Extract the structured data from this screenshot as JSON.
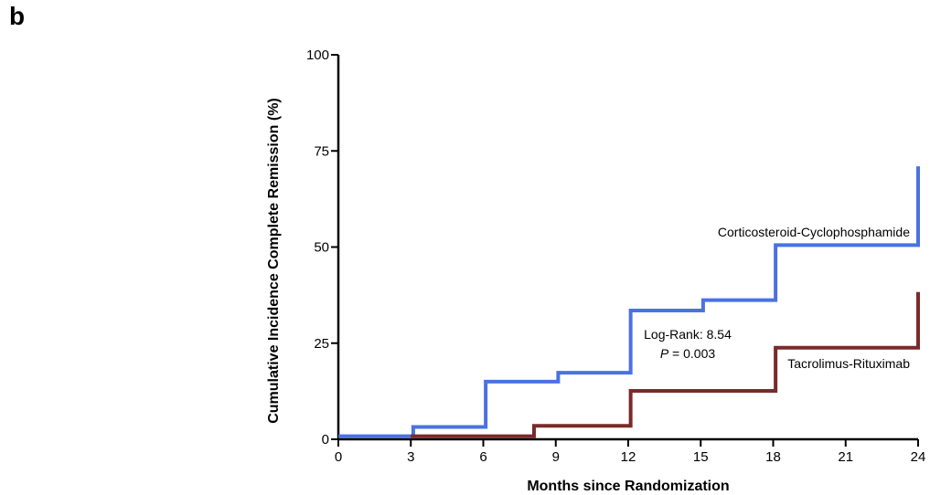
{
  "panel_label": "b",
  "chart_data": {
    "type": "line",
    "step": true,
    "xlabel": "Months since Randomization",
    "ylabel": "Cumulative Incidence Complete Remission (%)",
    "xlim": [
      0,
      24
    ],
    "ylim": [
      0,
      100
    ],
    "xticks": [
      0,
      3,
      6,
      9,
      12,
      15,
      18,
      21,
      24
    ],
    "yticks": [
      0,
      25,
      50,
      75,
      100
    ],
    "grid": false,
    "series": [
      {
        "name": "Corticosteroid-Cyclophosphamide",
        "color": "#4a72e0",
        "x": [
          0,
          3.1,
          6.1,
          9.1,
          12.1,
          15.1,
          18.1,
          24.0
        ],
        "y": [
          0.8,
          3.2,
          15.0,
          17.3,
          33.5,
          36.2,
          50.5,
          71.0
        ]
      },
      {
        "name": "Tacrolimus-Rituximab",
        "color": "#7a2a2a",
        "x": [
          3.0,
          8.1,
          12.1,
          18.1,
          24.0
        ],
        "y": [
          0.8,
          3.5,
          12.6,
          23.8,
          38.3
        ]
      }
    ],
    "annotations": {
      "log_rank_line1": "Log-Rank: 8.54",
      "p_symbol": "P",
      "p_rest": " = 0.003"
    }
  }
}
